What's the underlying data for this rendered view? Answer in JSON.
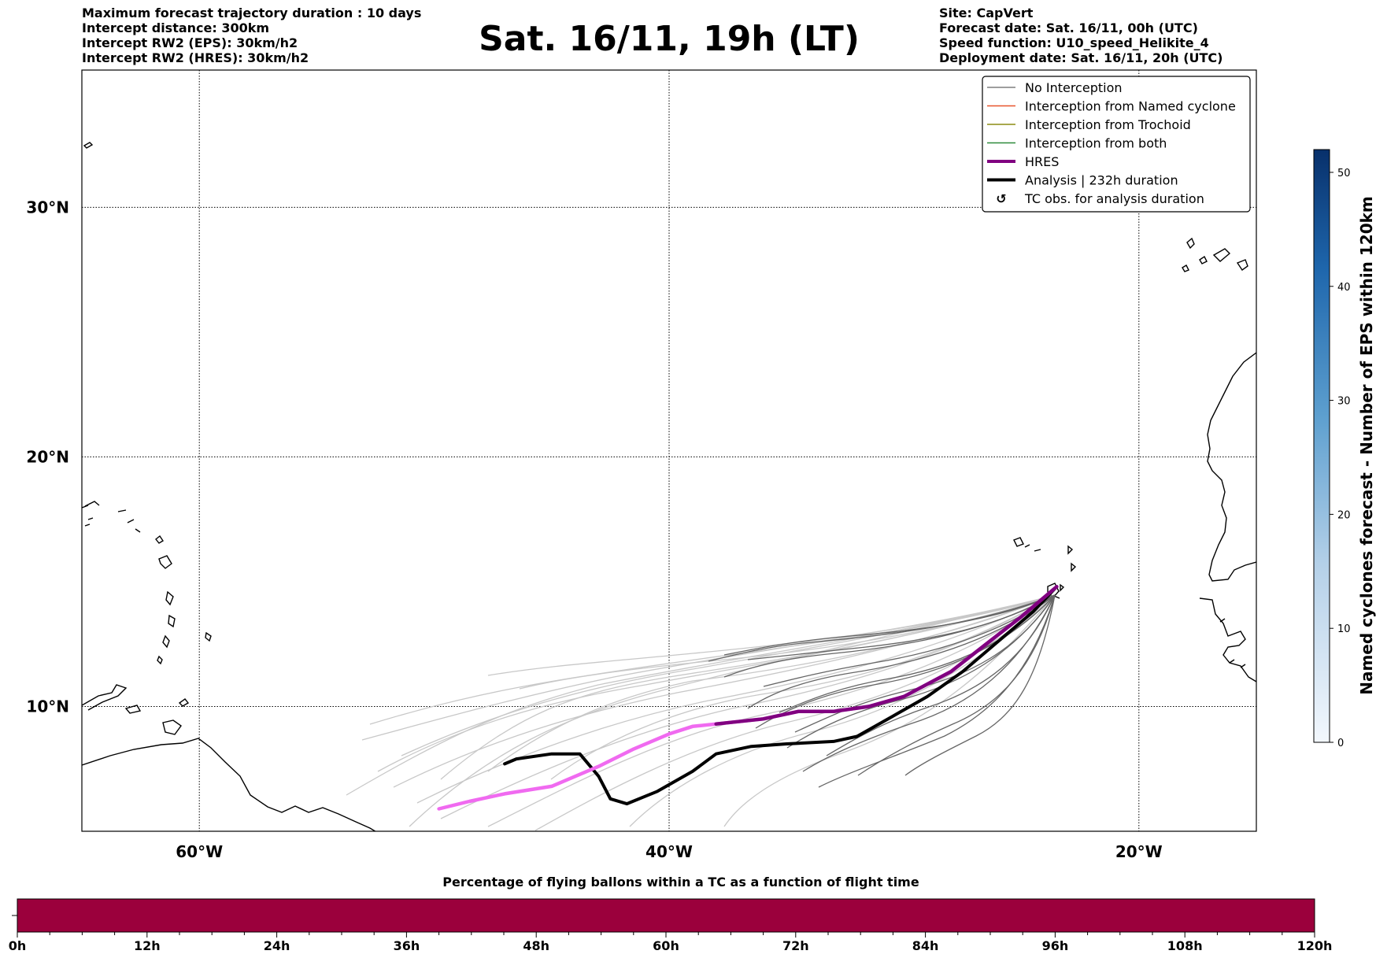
{
  "header_left": [
    "Maximum forecast trajectory duration : 10 days",
    "Intercept distance: 300km",
    "Intercept RW2 (EPS):  30km/h2",
    "Intercept RW2 (HRES): 30km/h2"
  ],
  "header_right": [
    "Site: CapVert",
    "Forecast date: Sat. 16/11, 00h (UTC)",
    "Speed function: U10_speed_Helikite_4",
    "Deployment date: Sat. 16/11, 20h (UTC)"
  ],
  "title": "Sat. 16/11, 19h (LT)",
  "colors": {
    "no_interception": "#7f7f7f",
    "named_cyclone": "#e8542c",
    "trochoid": "#8c8c12",
    "both": "#2e8b3a",
    "hres": "#800080",
    "hres_light": "#f06af0",
    "analysis": "#000000",
    "eps_light": "#c8c8c8",
    "eps_dark": "#666666",
    "bar_fill": "#9b003c"
  },
  "map": {
    "lon_range": [
      -65,
      -15
    ],
    "lat_range": [
      5,
      35.5
    ],
    "grid": true,
    "lon_ticks": [
      {
        "lon": -60,
        "label": "60°W"
      },
      {
        "lon": -40,
        "label": "40°W"
      },
      {
        "lon": -20,
        "label": "20°W"
      }
    ],
    "lat_ticks": [
      {
        "lat": 10,
        "label": "10°N"
      },
      {
        "lat": 20,
        "label": "20°N"
      },
      {
        "lat": 30,
        "label": "30°N"
      }
    ]
  },
  "legend": {
    "placement": "top-right",
    "items": [
      {
        "label": "No Interception",
        "style": "thin",
        "color": "#7f7f7f"
      },
      {
        "label": "Interception from Named cyclone",
        "style": "thin",
        "color": "#e8542c"
      },
      {
        "label": "Interception from Trochoid",
        "style": "thin",
        "color": "#8c8c12"
      },
      {
        "label": "Interception from both",
        "style": "thin",
        "color": "#2e8b3a"
      },
      {
        "label": "HRES",
        "style": "thick",
        "color": "#800080"
      },
      {
        "label": "Analysis | 232h duration",
        "style": "thick",
        "color": "#000000"
      },
      {
        "label": "TC obs. for analysis duration",
        "style": "marker",
        "color": "#000000",
        "marker": "↺"
      }
    ]
  },
  "colorbar": {
    "label": "Named cyclones forecast - Number of EPS within 120km",
    "min": 0,
    "max": 52,
    "ticks": [
      "0",
      "10",
      "20",
      "30",
      "40",
      "50"
    ]
  },
  "bottom_bar": {
    "title": "Percentage of flying ballons within a TC as a function of flight time",
    "ticks": [
      "0h",
      "12h",
      "24h",
      "36h",
      "48h",
      "60h",
      "72h",
      "84h",
      "96h",
      "108h",
      "120h"
    ]
  },
  "chart_data": {
    "type": "line",
    "series": [
      {
        "name": "HRES",
        "points": [
          [
            -23.5,
            14.8
          ],
          [
            -25,
            13.6
          ],
          [
            -26.5,
            12.5
          ],
          [
            -28,
            11.4
          ],
          [
            -30,
            10.4
          ],
          [
            -31.5,
            10
          ],
          [
            -33,
            9.8
          ],
          [
            -34.5,
            9.8
          ],
          [
            -36,
            9.5
          ],
          [
            -38,
            9.3
          ],
          [
            -39,
            9.2
          ],
          [
            -40,
            8.9
          ],
          [
            -41.5,
            8.3
          ],
          [
            -43,
            7.6
          ],
          [
            -45,
            6.8
          ],
          [
            -47,
            6.5
          ],
          [
            -48.5,
            6.2
          ],
          [
            -49.8,
            5.9
          ]
        ]
      },
      {
        "name": "Analysis | 232h duration",
        "points": [
          [
            -23.5,
            14.8
          ],
          [
            -24.5,
            13.8
          ],
          [
            -26,
            12.6
          ],
          [
            -27.5,
            11.4
          ],
          [
            -29,
            10.4
          ],
          [
            -30.5,
            9.6
          ],
          [
            -32,
            8.8
          ],
          [
            -33,
            8.6
          ],
          [
            -35,
            8.5
          ],
          [
            -36.5,
            8.4
          ],
          [
            -38,
            8.1
          ],
          [
            -39,
            7.4
          ],
          [
            -40.5,
            6.6
          ],
          [
            -41.8,
            6.1
          ],
          [
            -42.5,
            6.3
          ],
          [
            -43,
            7.2
          ],
          [
            -43.8,
            8.1
          ],
          [
            -45,
            8.1
          ],
          [
            -46.5,
            7.9
          ],
          [
            -47,
            7.7
          ]
        ]
      }
    ],
    "xlabel": "",
    "ylabel": ""
  }
}
